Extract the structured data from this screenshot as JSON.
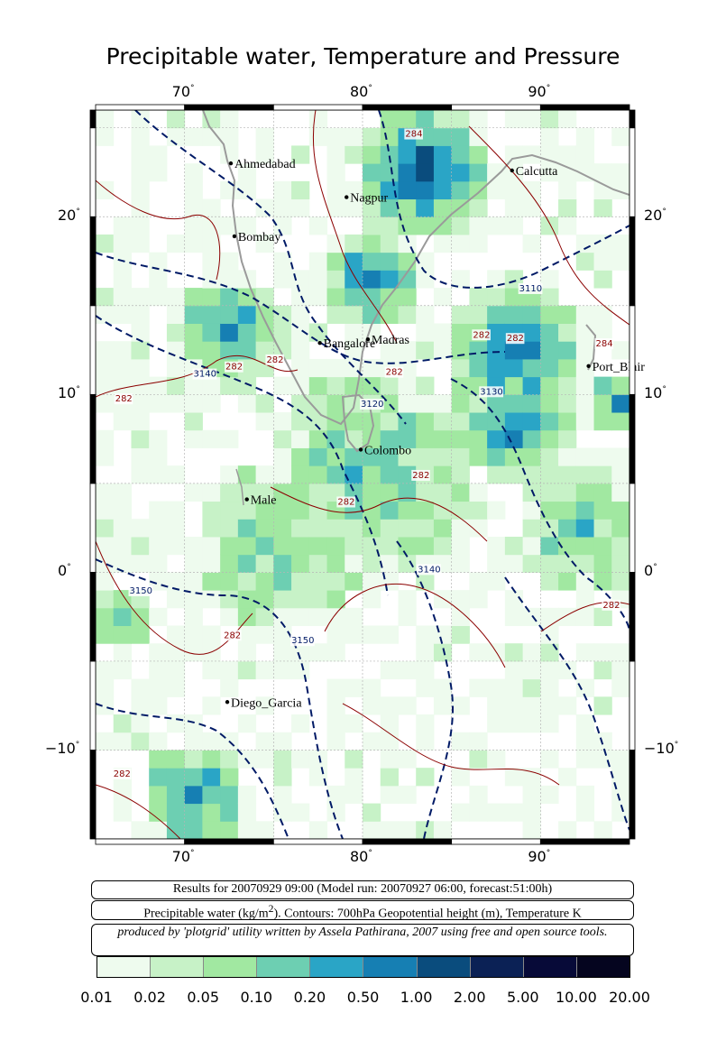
{
  "title": "Precipitable water, Temperature and Pressure",
  "map": {
    "lon_range": [
      65,
      95
    ],
    "lat_range": [
      -15,
      26
    ],
    "lon_ticks": [
      {
        "value": 70,
        "label": "70",
        "deg": "°"
      },
      {
        "value": 80,
        "label": "80",
        "deg": "°"
      },
      {
        "value": 90,
        "label": "90",
        "deg": "°"
      }
    ],
    "lat_ticks": [
      {
        "value": 20,
        "label": "20",
        "deg": "°"
      },
      {
        "value": 10,
        "label": "10",
        "deg": "°"
      },
      {
        "value": 0,
        "label": "0",
        "deg": "°"
      },
      {
        "value": -10,
        "label": "−10",
        "deg": "°"
      }
    ],
    "cities": [
      {
        "name": "Ahmedabad",
        "lon": 72.6,
        "lat": 23.0
      },
      {
        "name": "Nagpur",
        "lon": 79.1,
        "lat": 21.1
      },
      {
        "name": "Calcutta",
        "lon": 88.4,
        "lat": 22.6
      },
      {
        "name": "Bombay",
        "lon": 72.8,
        "lat": 18.9
      },
      {
        "name": "Bangalore",
        "lon": 77.6,
        "lat": 12.9
      },
      {
        "name": "Madras",
        "lon": 80.3,
        "lat": 13.1
      },
      {
        "name": "Port_Blair",
        "lon": 92.7,
        "lat": 11.6
      },
      {
        "name": "Colombo",
        "lon": 79.9,
        "lat": 6.9
      },
      {
        "name": "Male",
        "lon": 73.5,
        "lat": 4.1
      },
      {
        "name": "Diego_Garcia",
        "lon": 72.4,
        "lat": -7.3
      }
    ],
    "contour_labels": [
      {
        "text": "3110",
        "lon": 88.8,
        "lat": 15.8,
        "kind": "height"
      },
      {
        "text": "3140",
        "lon": 70.5,
        "lat": 11.0,
        "kind": "height"
      },
      {
        "text": "3130",
        "lon": 86.6,
        "lat": 10.0,
        "kind": "height"
      },
      {
        "text": "3120",
        "lon": 79.9,
        "lat": 9.3,
        "kind": "height"
      },
      {
        "text": "3140",
        "lon": 83.1,
        "lat": 0.0,
        "kind": "height"
      },
      {
        "text": "3150",
        "lon": 66.9,
        "lat": -1.2,
        "kind": "height"
      },
      {
        "text": "3150",
        "lon": 76.0,
        "lat": -4.0,
        "kind": "height"
      },
      {
        "text": "282",
        "lon": 72.3,
        "lat": 11.4,
        "kind": "temp"
      },
      {
        "text": "282",
        "lon": 74.6,
        "lat": 11.8,
        "kind": "temp"
      },
      {
        "text": "282",
        "lon": 66.1,
        "lat": 9.6,
        "kind": "temp"
      },
      {
        "text": "282",
        "lon": 81.3,
        "lat": 11.1,
        "kind": "temp"
      },
      {
        "text": "282",
        "lon": 86.2,
        "lat": 13.2,
        "kind": "temp"
      },
      {
        "text": "282",
        "lon": 88.1,
        "lat": 13.0,
        "kind": "temp"
      },
      {
        "text": "284",
        "lon": 93.1,
        "lat": 12.7,
        "kind": "temp"
      },
      {
        "text": "284",
        "lon": 82.4,
        "lat": 24.5,
        "kind": "temp"
      },
      {
        "text": "282",
        "lon": 78.6,
        "lat": 3.8,
        "kind": "temp"
      },
      {
        "text": "282",
        "lon": 82.8,
        "lat": 5.3,
        "kind": "temp"
      },
      {
        "text": "282",
        "lon": 72.2,
        "lat": -3.7,
        "kind": "temp"
      },
      {
        "text": "282",
        "lon": 93.5,
        "lat": -2.0,
        "kind": "temp"
      },
      {
        "text": "282",
        "lon": 66.0,
        "lat": -11.5,
        "kind": "temp"
      }
    ]
  },
  "info": {
    "results_line": "Results for 20070929 09:00 (Model run: 20070927 06:00, forecast:51:00h)",
    "desc_prefix": "Precipitable water (kg/m",
    "desc_sup": "2",
    "desc_suffix": ").  Contours: 700hPa Geopotential height (m), Temperature K",
    "credit_line": "produced by 'plotgrid' utility written by Assela Pathirana, 2007 using free and open source tools."
  },
  "colorbar": {
    "colors": [
      "#eefbee",
      "#c7f2c7",
      "#a1e8a1",
      "#6dcfb2",
      "#2aa5c6",
      "#167fb3",
      "#0a4c7d",
      "#0b2155",
      "#070a38",
      "#05051f"
    ],
    "labels": [
      "0.01",
      "0.02",
      "0.05",
      "0.10",
      "0.20",
      "0.50",
      "1.00",
      "2.00",
      "5.00",
      "10.00",
      "20.00"
    ]
  }
}
